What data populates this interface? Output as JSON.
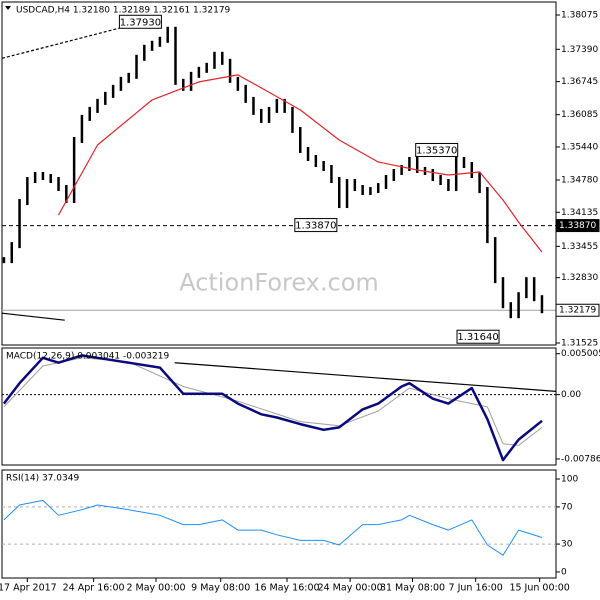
{
  "chart_data": [
    {
      "type": "line",
      "title": "USDCAD,H4  1.32180 1.32189 1.32161 1.32179",
      "watermark": "ActionForex.com",
      "ylim": [
        1.31485,
        1.38335
      ],
      "yticks": [
        {
          "value": 1.38075,
          "label": "1.38075"
        },
        {
          "value": 1.3739,
          "label": "1.37390"
        },
        {
          "value": 1.36745,
          "label": "1.36745"
        },
        {
          "value": 1.36085,
          "label": "1.36085"
        },
        {
          "value": 1.3544,
          "label": "1.35440"
        },
        {
          "value": 1.3478,
          "label": "1.34780"
        },
        {
          "value": 1.34135,
          "label": "1.34135"
        },
        {
          "value": 1.33455,
          "label": "1.33455"
        },
        {
          "value": 1.3283,
          "label": "1.32830"
        },
        {
          "value": 1.31525,
          "label": "1.31525"
        }
      ],
      "series": [
        {
          "style": "bars",
          "color": "#000000",
          "x": [
            0,
            1,
            2,
            3,
            4,
            5,
            6,
            7,
            8,
            9,
            10,
            11,
            12,
            13,
            14,
            15,
            16,
            17,
            18,
            19,
            20,
            21,
            22,
            23,
            24,
            25,
            26,
            27,
            28,
            29,
            30,
            31,
            32,
            33,
            34,
            35,
            36,
            37,
            38,
            39,
            40,
            41,
            42,
            43,
            44,
            45,
            46,
            47,
            48,
            49,
            50,
            51,
            52,
            53,
            54,
            55,
            56,
            57,
            58,
            59,
            60,
            61,
            62,
            63,
            64,
            65,
            66,
            67,
            68,
            69
          ],
          "values": [
            1.3318,
            1.3348,
            1.3434,
            1.3478,
            1.3488,
            1.3484,
            1.3478,
            1.3462,
            1.3438,
            1.3558,
            1.3602,
            1.3618,
            1.3634,
            1.3648,
            1.3662,
            1.3678,
            1.3686,
            1.3722,
            1.3742,
            1.375,
            1.3758,
            1.3778,
            1.3674,
            1.3662,
            1.3688,
            1.3698,
            1.3706,
            1.3728,
            1.3714,
            1.3678,
            1.3662,
            1.3638,
            1.3614,
            1.3598,
            1.3618,
            1.3634,
            1.3618,
            1.3578,
            1.3538,
            1.3522,
            1.351,
            1.3502,
            1.3478,
            1.3428,
            1.3474,
            1.3462,
            1.3454,
            1.3458,
            1.3466,
            1.3482,
            1.3494,
            1.3502,
            1.3518,
            1.3498,
            1.3494,
            1.3482,
            1.3474,
            1.3462,
            1.3518,
            1.3508,
            1.3488,
            1.3458,
            1.3358,
            1.3278,
            1.3228,
            1.3208,
            1.3248,
            1.3278,
            1.3242,
            1.3218
          ]
        },
        {
          "style": "line",
          "color": "#e3242b",
          "width": 1.2,
          "x": [
            7,
            12,
            19,
            25,
            30,
            33,
            38,
            43,
            48,
            53,
            57,
            61,
            64,
            66,
            69
          ],
          "values": [
            1.3408,
            1.3548,
            1.3638,
            1.3674,
            1.3688,
            1.3662,
            1.3618,
            1.3558,
            1.3514,
            1.3498,
            1.3488,
            1.3494,
            1.3438,
            1.3394,
            1.3334
          ]
        }
      ],
      "levels": [
        {
          "value": 1.3387,
          "label": "1.33870",
          "color": "#000000",
          "dash": "4 3",
          "box": "dark"
        },
        {
          "value": 1.32179,
          "label": "1.32179",
          "color": "#a0a0a0",
          "dash": "",
          "box": "light"
        }
      ],
      "annotations": [
        {
          "text": "1.37930",
          "x": 17.5,
          "value": 1.3793
        },
        {
          "text": "1.35370",
          "x": 55.5,
          "value": 1.3537
        },
        {
          "text": "1.33870",
          "x": 40,
          "value": 1.3387
        },
        {
          "text": "1.31640",
          "x": 60.8,
          "value": 1.3164
        }
      ],
      "trendlines": [
        {
          "color": "#000000",
          "dash": "3 2",
          "x": [
            -0.25,
            20
          ],
          "y": [
            1.3721,
            1.3802
          ]
        },
        {
          "color": "#000000",
          "dash": "",
          "x": [
            -0.25,
            7.8
          ],
          "y": [
            1.3212,
            1.3198
          ]
        }
      ]
    },
    {
      "type": "line",
      "title": "MACD(12,26,9) 0.003041 -0.003219",
      "ylim": [
        -0.0086,
        0.0057
      ],
      "yticks": [
        0.005005,
        {
          "value": 0,
          "label": "0.00"
        },
        -0.007862
      ],
      "series": [
        {
          "style": "line",
          "color": "#a0a0a0",
          "width": 1,
          "x": [
            0,
            5,
            10,
            16,
            23,
            30,
            38,
            43,
            48,
            52,
            57,
            62,
            64,
            66,
            69
          ],
          "values": [
            -0.0015,
            0.0035,
            0.0045,
            0.004,
            0.001,
            -0.0008,
            -0.0033,
            -0.0038,
            -0.002,
            0.0008,
            -0.0005,
            -0.0015,
            -0.006,
            -0.0062,
            -0.004
          ]
        },
        {
          "style": "line",
          "color": "#0a0a80",
          "width": 2.5,
          "x": [
            0,
            2,
            5,
            7,
            10,
            12,
            16,
            20,
            23,
            25,
            28,
            30,
            33,
            35,
            38,
            41,
            43,
            46,
            48,
            51,
            52,
            55,
            57,
            60,
            62,
            64,
            66,
            69
          ],
          "values": [
            -0.0011,
            0.0014,
            0.0045,
            0.0039,
            0.0048,
            0.0045,
            0.0039,
            0.0033,
            0.0001,
            0.0001,
            0.0001,
            -0.0011,
            -0.0024,
            -0.0028,
            -0.0036,
            -0.0043,
            -0.004,
            -0.0018,
            -0.0011,
            0.001,
            0.0014,
            -0.0005,
            -0.0011,
            0.0008,
            -0.003,
            -0.008,
            -0.0055,
            -0.0032
          ]
        }
      ],
      "levels": [
        {
          "value": 0,
          "color": "#000000",
          "dash": "2 2"
        }
      ],
      "trendlines": [
        {
          "color": "#000000",
          "dash": "",
          "x": [
            21.9,
            70.8
          ],
          "y": [
            0.0039,
            0.0004
          ]
        }
      ]
    },
    {
      "type": "line",
      "title": "RSI(14) 37.0349",
      "ylim": [
        -6.5,
        109.7
      ],
      "xlim": [
        -0.25,
        70.8
      ],
      "yticks": [
        100,
        70,
        30,
        0
      ],
      "xticks": [
        {
          "value": 3,
          "label": "17 Apr 2017"
        },
        {
          "value": 11.5,
          "label": "24 Apr 16:00"
        },
        {
          "value": 19.5,
          "label": "2 May 00:00"
        },
        {
          "value": 27.8,
          "label": "9 May 08:00"
        },
        {
          "value": 36.3,
          "label": "16 May 16:00"
        },
        {
          "value": 44.4,
          "label": "24 May 00:00"
        },
        {
          "value": 52.4,
          "label": "31 May 08:00"
        },
        {
          "value": 60.5,
          "label": "7 Jun 16:00"
        },
        {
          "value": 68.7,
          "label": "15 Jun 00:00"
        }
      ],
      "series": [
        {
          "style": "line",
          "color": "#1e90ff",
          "width": 1,
          "x": [
            0,
            2,
            5,
            7,
            10,
            12,
            16,
            20,
            23,
            25,
            28,
            30,
            33,
            35,
            38,
            41,
            43,
            46,
            48,
            51,
            52,
            55,
            57,
            60,
            62,
            64,
            66,
            69
          ],
          "values": [
            56,
            72,
            77,
            61,
            67,
            72,
            67,
            61,
            51,
            51,
            56,
            45,
            45,
            40,
            34,
            34,
            29,
            51,
            51,
            56,
            61,
            51,
            45,
            56,
            29,
            18,
            45,
            37.0349
          ]
        }
      ],
      "levels": [
        {
          "value": 70,
          "color": "#b0b0b0",
          "dash": "3 3"
        },
        {
          "value": 30,
          "color": "#b0b0b0",
          "dash": "3 3"
        }
      ]
    }
  ]
}
